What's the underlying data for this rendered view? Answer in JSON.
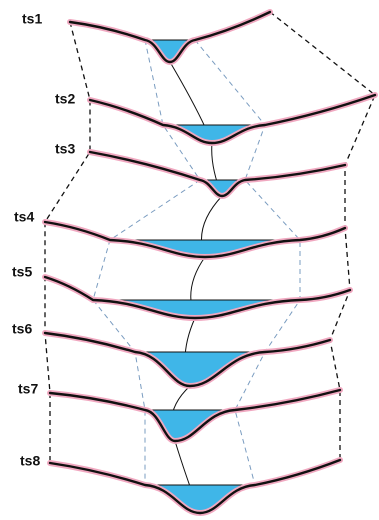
{
  "sections": [
    {
      "label": "ts1"
    },
    {
      "label": "ts2"
    },
    {
      "label": "ts3"
    },
    {
      "label": "ts4"
    },
    {
      "label": "ts5"
    },
    {
      "label": "ts6"
    },
    {
      "label": "ts7"
    },
    {
      "label": "ts8"
    }
  ]
}
